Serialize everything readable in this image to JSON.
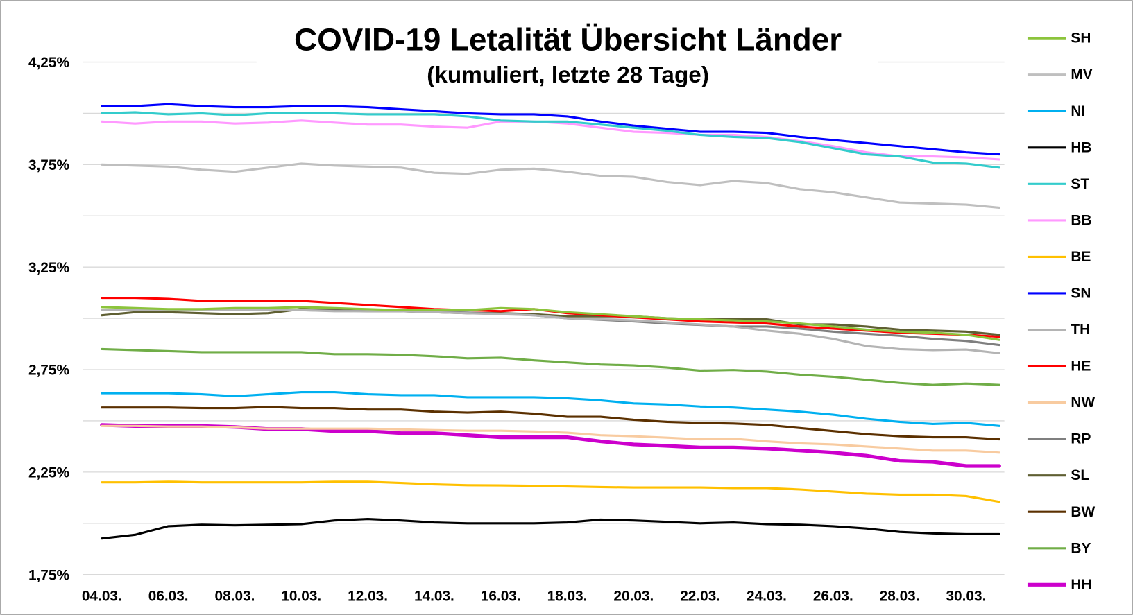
{
  "chart_data": {
    "type": "line",
    "title": "COVID-19 Letalität Übersicht Länder",
    "subtitle": "(kumuliert, letzte 28 Tage)",
    "categories": [
      "04.03.",
      null,
      "06.03.",
      null,
      "08.03.",
      null,
      "10.03.",
      null,
      "12.03.",
      null,
      "14.03.",
      null,
      "16.03.",
      null,
      "18.03.",
      null,
      "20.03.",
      null,
      "22.03.",
      null,
      "24.03.",
      null,
      "26.03.",
      null,
      "28.03.",
      null,
      "30.03.",
      null
    ],
    "ylim": [
      1.75,
      4.25
    ],
    "yticks": [
      {
        "value": 1.75,
        "label": "1,75%"
      },
      {
        "value": 2.25,
        "label": "2,25%"
      },
      {
        "value": 2.75,
        "label": "2,75%"
      },
      {
        "value": 3.25,
        "label": "3,25%"
      },
      {
        "value": 3.75,
        "label": "3,75%"
      },
      {
        "value": 4.25,
        "label": "4,25%"
      }
    ],
    "minor_yticks": [
      2.0,
      2.5,
      3.0,
      3.5,
      4.0
    ],
    "grid": true,
    "legend": "right",
    "series": [
      {
        "name": "SH",
        "color": "#8cc43c",
        "line_width": 3,
        "values": [
          3.055,
          3.05,
          3.045,
          3.045,
          3.05,
          3.05,
          3.055,
          3.05,
          3.045,
          3.04,
          3.04,
          3.04,
          3.05,
          3.045,
          3.03,
          3.02,
          3.01,
          3.0,
          2.995,
          2.99,
          2.985,
          2.975,
          2.96,
          2.945,
          2.935,
          2.93,
          2.92,
          2.895
        ]
      },
      {
        "name": "MV",
        "color": "#bfbfbf",
        "line_width": 3,
        "values": [
          3.75,
          3.745,
          3.74,
          3.725,
          3.715,
          3.735,
          3.755,
          3.745,
          3.74,
          3.735,
          3.71,
          3.705,
          3.725,
          3.73,
          3.715,
          3.695,
          3.69,
          3.665,
          3.65,
          3.67,
          3.66,
          3.63,
          3.615,
          3.59,
          3.565,
          3.56,
          3.555,
          3.54
        ]
      },
      {
        "name": "NI",
        "color": "#00b0f0",
        "line_width": 3,
        "values": [
          2.635,
          2.635,
          2.635,
          2.63,
          2.62,
          2.63,
          2.64,
          2.64,
          2.63,
          2.625,
          2.625,
          2.615,
          2.615,
          2.615,
          2.61,
          2.6,
          2.585,
          2.58,
          2.57,
          2.565,
          2.555,
          2.545,
          2.53,
          2.51,
          2.495,
          2.485,
          2.49,
          2.475
        ]
      },
      {
        "name": "HB",
        "color": "#000000",
        "line_width": 3,
        "values": [
          1.926,
          1.944,
          1.986,
          1.993,
          1.99,
          1.993,
          1.996,
          2.014,
          2.021,
          2.014,
          2.004,
          2.0,
          2.0,
          2.0,
          2.004,
          2.018,
          2.014,
          2.007,
          2.0,
          2.004,
          1.996,
          1.993,
          1.986,
          1.975,
          1.958,
          1.951,
          1.947,
          1.947
        ]
      },
      {
        "name": "ST",
        "color": "#33cccc",
        "line_width": 3,
        "values": [
          4.0,
          4.005,
          3.995,
          4.0,
          3.99,
          4.0,
          4.0,
          4.0,
          3.995,
          3.995,
          3.995,
          3.985,
          3.965,
          3.96,
          3.96,
          3.945,
          3.93,
          3.915,
          3.895,
          3.885,
          3.88,
          3.86,
          3.83,
          3.8,
          3.79,
          3.76,
          3.755,
          3.735
        ]
      },
      {
        "name": "BB",
        "color": "#ff99ff",
        "line_width": 3,
        "values": [
          3.96,
          3.95,
          3.96,
          3.96,
          3.95,
          3.955,
          3.965,
          3.955,
          3.945,
          3.945,
          3.935,
          3.93,
          3.96,
          3.96,
          3.95,
          3.93,
          3.91,
          3.905,
          3.895,
          3.895,
          3.885,
          3.865,
          3.84,
          3.81,
          3.79,
          3.79,
          3.785,
          3.775
        ]
      },
      {
        "name": "BE",
        "color": "#ffc000",
        "line_width": 3,
        "values": [
          2.2,
          2.2,
          2.203,
          2.2,
          2.2,
          2.2,
          2.2,
          2.203,
          2.203,
          2.197,
          2.19,
          2.186,
          2.185,
          2.183,
          2.18,
          2.177,
          2.175,
          2.175,
          2.175,
          2.172,
          2.172,
          2.165,
          2.155,
          2.145,
          2.14,
          2.14,
          2.133,
          2.105
        ]
      },
      {
        "name": "SN",
        "color": "#0000ff",
        "line_width": 3,
        "values": [
          4.035,
          4.035,
          4.045,
          4.035,
          4.03,
          4.03,
          4.035,
          4.035,
          4.03,
          4.02,
          4.01,
          4.0,
          3.995,
          3.995,
          3.985,
          3.96,
          3.94,
          3.925,
          3.91,
          3.91,
          3.905,
          3.885,
          3.87,
          3.855,
          3.84,
          3.825,
          3.81,
          3.8
        ]
      },
      {
        "name": "TH",
        "color": "#b4b4b4",
        "line_width": 3,
        "values": [
          3.04,
          3.04,
          3.04,
          3.04,
          3.04,
          3.04,
          3.04,
          3.035,
          3.035,
          3.035,
          3.03,
          3.025,
          3.02,
          3.015,
          3.0,
          2.995,
          2.99,
          2.98,
          2.97,
          2.96,
          2.94,
          2.925,
          2.9,
          2.865,
          2.85,
          2.845,
          2.848,
          2.83
        ]
      },
      {
        "name": "HE",
        "color": "#ff0000",
        "line_width": 3,
        "values": [
          3.1,
          3.1,
          3.095,
          3.085,
          3.085,
          3.085,
          3.085,
          3.075,
          3.065,
          3.055,
          3.045,
          3.04,
          3.035,
          3.045,
          3.025,
          3.015,
          3.005,
          2.995,
          2.985,
          2.98,
          2.975,
          2.96,
          2.95,
          2.94,
          2.93,
          2.925,
          2.92,
          2.91
        ]
      },
      {
        "name": "NW",
        "color": "#f8cba0",
        "line_width": 3,
        "values": [
          2.475,
          2.475,
          2.472,
          2.472,
          2.468,
          2.462,
          2.462,
          2.462,
          2.462,
          2.458,
          2.455,
          2.452,
          2.452,
          2.448,
          2.442,
          2.43,
          2.425,
          2.418,
          2.41,
          2.413,
          2.4,
          2.39,
          2.385,
          2.375,
          2.365,
          2.355,
          2.355,
          2.345
        ]
      },
      {
        "name": "RP",
        "color": "#7f7f7f",
        "line_width": 3,
        "values": [
          3.04,
          3.043,
          3.043,
          3.043,
          3.04,
          3.04,
          3.04,
          3.037,
          3.035,
          3.035,
          3.032,
          3.028,
          3.022,
          3.015,
          3.0,
          2.993,
          2.985,
          2.975,
          2.968,
          2.96,
          2.96,
          2.95,
          2.935,
          2.925,
          2.915,
          2.9,
          2.89,
          2.87
        ]
      },
      {
        "name": "SL",
        "color": "#5f5f32",
        "line_width": 3,
        "values": [
          3.015,
          3.03,
          3.03,
          3.025,
          3.02,
          3.025,
          3.045,
          3.04,
          3.035,
          3.035,
          3.03,
          3.025,
          3.025,
          3.02,
          3.01,
          3.01,
          3.01,
          3.0,
          2.995,
          2.995,
          2.995,
          2.97,
          2.97,
          2.96,
          2.945,
          2.94,
          2.935,
          2.92
        ]
      },
      {
        "name": "BW",
        "color": "#5b3000",
        "line_width": 3,
        "values": [
          2.565,
          2.565,
          2.565,
          2.562,
          2.562,
          2.568,
          2.562,
          2.562,
          2.555,
          2.555,
          2.545,
          2.54,
          2.545,
          2.535,
          2.52,
          2.52,
          2.505,
          2.495,
          2.49,
          2.487,
          2.48,
          2.465,
          2.45,
          2.435,
          2.425,
          2.42,
          2.42,
          2.41
        ]
      },
      {
        "name": "BY",
        "color": "#70ad47",
        "line_width": 3,
        "values": [
          2.85,
          2.845,
          2.84,
          2.835,
          2.835,
          2.835,
          2.835,
          2.825,
          2.825,
          2.822,
          2.815,
          2.805,
          2.808,
          2.795,
          2.785,
          2.775,
          2.77,
          2.76,
          2.745,
          2.748,
          2.74,
          2.725,
          2.715,
          2.7,
          2.685,
          2.675,
          2.682,
          2.675
        ]
      },
      {
        "name": "HH",
        "color": "#cc00cc",
        "line_width": 5,
        "values": [
          2.48,
          2.475,
          2.475,
          2.475,
          2.47,
          2.46,
          2.46,
          2.45,
          2.45,
          2.44,
          2.44,
          2.43,
          2.42,
          2.42,
          2.42,
          2.4,
          2.385,
          2.378,
          2.37,
          2.37,
          2.365,
          2.355,
          2.345,
          2.33,
          2.305,
          2.3,
          2.28,
          2.28
        ]
      }
    ]
  }
}
